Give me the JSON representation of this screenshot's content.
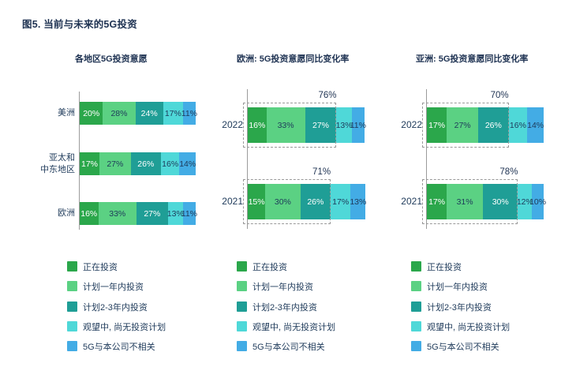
{
  "title": "图5. 当前与未来的5G投资",
  "colors": {
    "segment_palette": [
      "#2BA74B",
      "#5BD183",
      "#1F9E96",
      "#4FD8D8",
      "#43ACE5"
    ],
    "text_navy": "#1E3A5A",
    "title_navy": "#1E3252",
    "segment_text_light": "#FFFFFF",
    "axis_gray": "#9B9B9B",
    "bracket_dash_gray": "#999999"
  },
  "legend": {
    "items": [
      {
        "name": "investing-now",
        "label": "正在投资",
        "color": "#2BA74B"
      },
      {
        "name": "plan-within-1-year",
        "label": "计划一年内投资",
        "color": "#5BD183"
      },
      {
        "name": "plan-2-3-years",
        "label": "计划2-3年内投资",
        "color": "#1F9E96"
      },
      {
        "name": "wait-and-see",
        "label": "观望中, 尚无投资计划",
        "color": "#4FD8D8"
      },
      {
        "name": "not-relevant",
        "label": "5G与本公司不相关",
        "color": "#43ACE5"
      }
    ]
  },
  "chart_data": [
    {
      "type": "bar",
      "stacked": true,
      "orientation": "horizontal",
      "title": "各地区5G投资意愿",
      "unit": "%",
      "categories": [
        "美洲",
        "亚太和中东地区",
        "欧洲"
      ],
      "categories_lines": [
        [
          "美洲"
        ],
        [
          "亚太和",
          "中东地区"
        ],
        [
          "欧洲"
        ]
      ],
      "series": [
        {
          "name": "正在投资",
          "values": [
            20,
            17,
            16
          ]
        },
        {
          "name": "计划一年内投资",
          "values": [
            28,
            27,
            33
          ]
        },
        {
          "name": "计划2-3年内投资",
          "values": [
            24,
            26,
            27
          ]
        },
        {
          "name": "观望中, 尚无投资计划",
          "values": [
            17,
            16,
            13
          ]
        },
        {
          "name": "5G与本公司不相关",
          "values": [
            11,
            14,
            11
          ]
        }
      ],
      "xlim": [
        0,
        100
      ],
      "legend_position": "bottom"
    },
    {
      "type": "bar",
      "stacked": true,
      "orientation": "horizontal",
      "title": "欧洲: 5G投资意愿同比变化率",
      "unit": "%",
      "categories": [
        "2022",
        "2021"
      ],
      "categories_lines": [
        [
          "2022"
        ],
        [
          "2021"
        ]
      ],
      "series": [
        {
          "name": "正在投资",
          "values": [
            16,
            15
          ]
        },
        {
          "name": "计划一年内投资",
          "values": [
            33,
            30
          ]
        },
        {
          "name": "计划2-3年内投资",
          "values": [
            27,
            26
          ]
        },
        {
          "name": "观望中, 尚无投资计划",
          "values": [
            13,
            17
          ]
        },
        {
          "name": "5G与本公司不相关",
          "values": [
            11,
            13
          ]
        }
      ],
      "brackets": {
        "span_series": 3,
        "labels": [
          "76%",
          "71%"
        ]
      },
      "xlim": [
        0,
        100
      ],
      "legend_position": "bottom"
    },
    {
      "type": "bar",
      "stacked": true,
      "orientation": "horizontal",
      "title": "亚洲: 5G投资意愿同比变化率",
      "unit": "%",
      "categories": [
        "2022",
        "2021"
      ],
      "categories_lines": [
        [
          "2022"
        ],
        [
          "2021"
        ]
      ],
      "series": [
        {
          "name": "正在投资",
          "values": [
            17,
            17
          ]
        },
        {
          "name": "计划一年内投资",
          "values": [
            27,
            31
          ]
        },
        {
          "name": "计划2-3年内投资",
          "values": [
            26,
            30
          ]
        },
        {
          "name": "观望中, 尚无投资计划",
          "values": [
            16,
            12
          ]
        },
        {
          "name": "5G与本公司不相关",
          "values": [
            14,
            10
          ]
        }
      ],
      "brackets": {
        "span_series": 3,
        "labels": [
          "70%",
          "78%"
        ]
      },
      "xlim": [
        0,
        100
      ],
      "legend_position": "bottom"
    }
  ]
}
